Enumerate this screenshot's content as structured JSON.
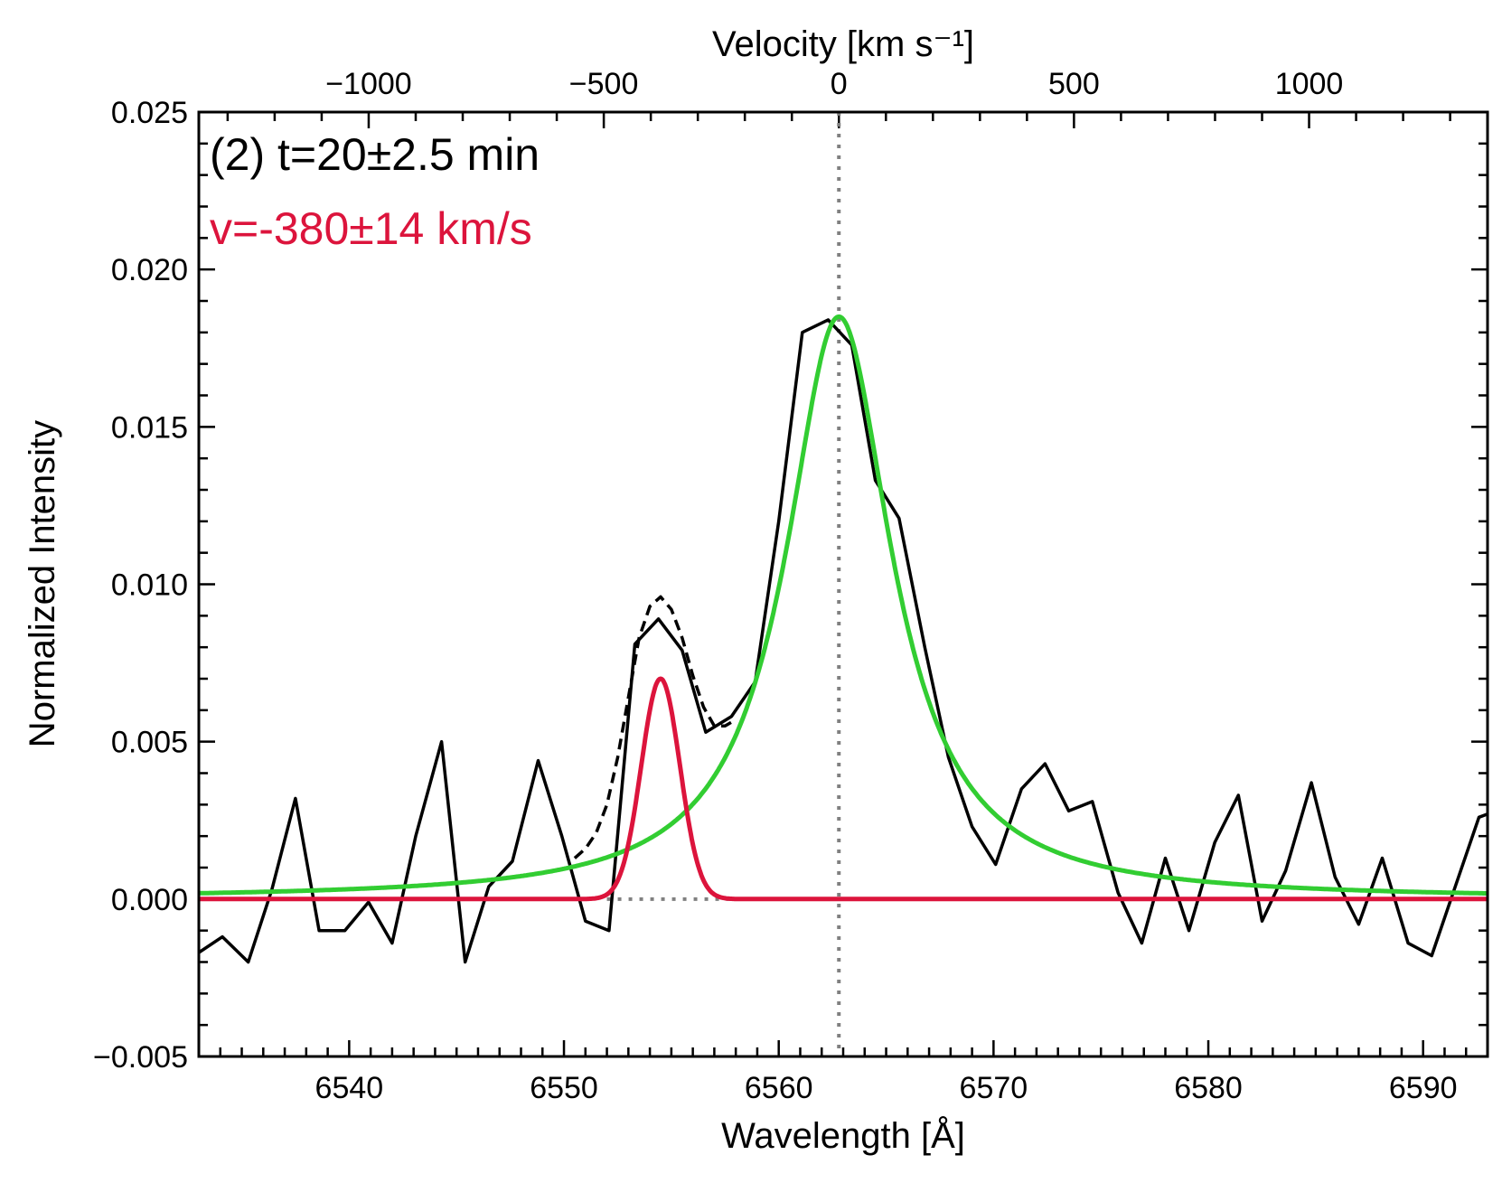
{
  "chart_data": {
    "type": "line",
    "xlabel": "Wavelength [Å]",
    "ylabel": "Normalized Intensity",
    "x2label": "Velocity [km s⁻¹]",
    "xlim": [
      6533,
      6593
    ],
    "ylim": [
      -0.005,
      0.025
    ],
    "x_ticks": [
      6540,
      6550,
      6560,
      6570,
      6580,
      6590
    ],
    "y_ticks": [
      -0.005,
      0.0,
      0.005,
      0.01,
      0.015,
      0.02,
      0.025
    ],
    "y_tick_labels": [
      "−0.005",
      "0.000",
      "0.005",
      "0.010",
      "0.015",
      "0.020",
      "0.025"
    ],
    "x2_ticks": [
      -1000,
      -500,
      0,
      500,
      1000
    ],
    "x2_tick_labels": [
      "−1000",
      "−500",
      "0",
      "500",
      "1000"
    ],
    "rest_wavelength": 6562.8,
    "grid": false,
    "annotations": {
      "label": "(2) t=20±2.5 min",
      "velocity": "v=-380±14 km/s"
    },
    "series": [
      {
        "style": "observed-solid",
        "color": "#000000",
        "x": [
          6533.0,
          6534.1,
          6535.3,
          6536.4,
          6537.5,
          6538.6,
          6539.8,
          6540.9,
          6542.0,
          6543.1,
          6544.3,
          6545.4,
          6546.5,
          6547.6,
          6548.8,
          6549.9,
          6551.0,
          6552.1,
          6553.3,
          6554.4,
          6555.5,
          6556.6,
          6557.8,
          6558.9,
          6560.0,
          6561.1,
          6562.3,
          6563.4,
          6564.5,
          6565.6,
          6566.8,
          6567.9,
          6569.0,
          6570.1,
          6571.3,
          6572.4,
          6573.5,
          6574.6,
          6575.8,
          6576.9,
          6578.0,
          6579.1,
          6580.3,
          6581.4,
          6582.5,
          6583.6,
          6584.8,
          6585.9,
          6587.0,
          6588.1,
          6589.3,
          6590.4,
          6591.5,
          6592.6,
          6593.0
        ],
        "y": [
          -0.0017,
          -0.0012,
          -0.002,
          0.0003,
          0.0032,
          -0.001,
          -0.001,
          -0.0001,
          -0.0014,
          0.002,
          0.005,
          -0.002,
          0.0004,
          0.0012,
          0.0044,
          0.002,
          -0.0007,
          -0.001,
          0.0081,
          0.0089,
          0.0079,
          0.0053,
          0.0058,
          0.0069,
          0.012,
          0.018,
          0.0184,
          0.0176,
          0.0133,
          0.0121,
          0.008,
          0.0045,
          0.0023,
          0.0011,
          0.0035,
          0.0043,
          0.0028,
          0.0031,
          0.0002,
          -0.0014,
          0.0013,
          -0.001,
          0.0018,
          0.0033,
          -0.0007,
          0.0009,
          0.0037,
          0.0007,
          -0.0008,
          0.0013,
          -0.0014,
          -0.0018,
          0.0004,
          0.0026,
          0.0027
        ]
      },
      {
        "style": "total-fit-dashed",
        "color": "#000000",
        "x": [
          6550.5,
          6551.0,
          6551.5,
          6552.0,
          6552.5,
          6553.0,
          6553.5,
          6554.0,
          6554.5,
          6555.0,
          6555.5,
          6556.0,
          6556.5,
          6557.0,
          6557.5,
          6558.0
        ],
        "y": [
          0.0013,
          0.0016,
          0.0021,
          0.003,
          0.0045,
          0.0064,
          0.0083,
          0.0093,
          0.0096,
          0.0092,
          0.0083,
          0.0071,
          0.0061,
          0.0055,
          0.0055,
          0.0057
        ]
      }
    ],
    "fit_components": {
      "lorentzian": {
        "color": "#32cd32",
        "center": 6562.8,
        "amplitude": 0.0185,
        "gamma": 3.0
      },
      "gaussian": {
        "color": "#dc143c",
        "center": 6554.5,
        "amplitude": 0.007,
        "sigma": 0.9
      }
    },
    "reference_lines": {
      "vertical_x": 6562.8,
      "horizontal_y": 0.0,
      "horizontal_x_range": [
        6552,
        6558
      ]
    }
  }
}
